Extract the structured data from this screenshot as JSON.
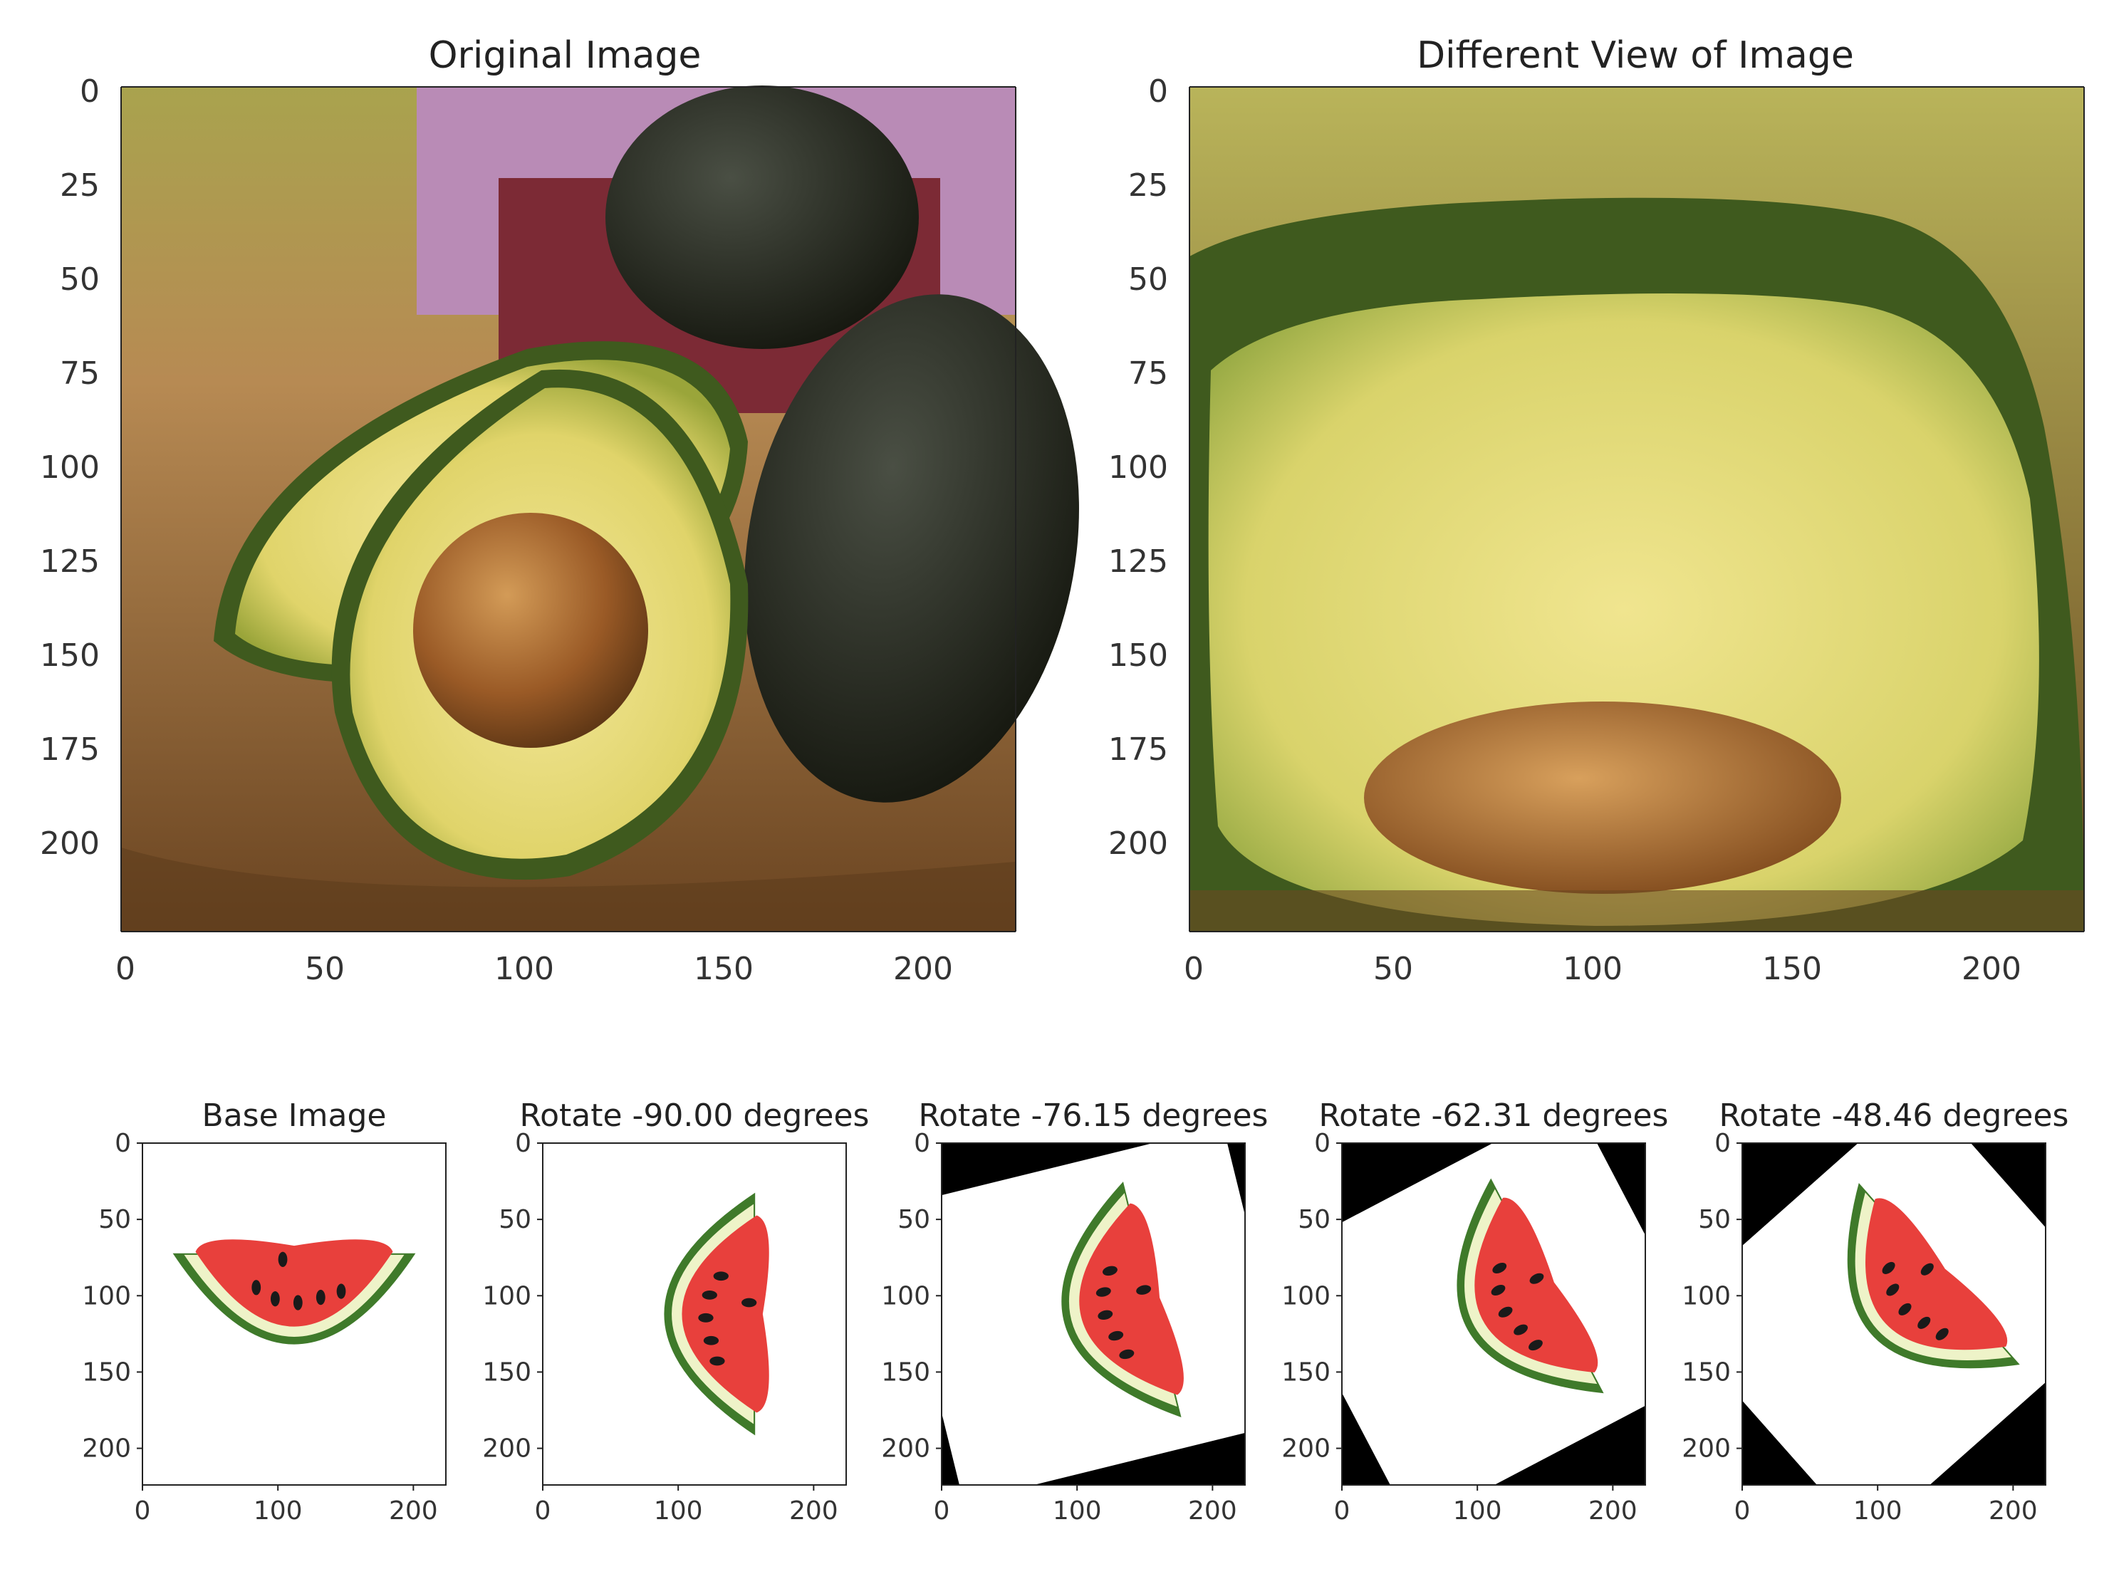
{
  "figure": {
    "top_panels": [
      {
        "title": "Original Image",
        "xticks": [
          "0",
          "50",
          "100",
          "150",
          "200"
        ],
        "yticks": [
          "0",
          "25",
          "50",
          "75",
          "100",
          "125",
          "150",
          "175",
          "200"
        ]
      },
      {
        "title": "Different View of Image",
        "xticks": [
          "0",
          "50",
          "100",
          "150",
          "200"
        ],
        "yticks": [
          "0",
          "25",
          "50",
          "75",
          "100",
          "125",
          "150",
          "175",
          "200"
        ]
      }
    ],
    "bottom_panels": [
      {
        "title": "Base Image",
        "rotation_deg": 0,
        "xticks": [
          "0",
          "100",
          "200"
        ],
        "yticks": [
          "0",
          "50",
          "100",
          "150",
          "200"
        ]
      },
      {
        "title": "Rotate -90.00 degrees",
        "rotation_deg": -90.0,
        "xticks": [
          "0",
          "100",
          "200"
        ],
        "yticks": [
          "0",
          "50",
          "100",
          "150",
          "200"
        ]
      },
      {
        "title": "Rotate -76.15 degrees",
        "rotation_deg": -76.15,
        "xticks": [
          "0",
          "100",
          "200"
        ],
        "yticks": [
          "0",
          "50",
          "100",
          "150",
          "200"
        ]
      },
      {
        "title": "Rotate -62.31 degrees",
        "rotation_deg": -62.31,
        "xticks": [
          "0",
          "100",
          "200"
        ],
        "yticks": [
          "0",
          "50",
          "100",
          "150",
          "200"
        ]
      },
      {
        "title": "Rotate -48.46 degrees",
        "rotation_deg": -48.46,
        "xticks": [
          "0",
          "100",
          "200"
        ],
        "yticks": [
          "0",
          "50",
          "100",
          "150",
          "200"
        ]
      }
    ],
    "colors": {
      "axis": "#222222",
      "text": "#222222",
      "avocado_flesh": "#e8df7a",
      "avocado_skin": "#3f5a1e",
      "avocado_pit": "#9a5a26",
      "watermelon_red": "#e8403c",
      "watermelon_rind": "#3f7a2a",
      "seed": "#1a1a1a"
    }
  }
}
